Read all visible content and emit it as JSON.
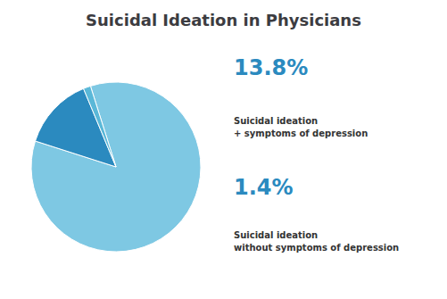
{
  "chart_data": {
    "type": "pie",
    "title": "Suicidal Ideation in Physicians",
    "values": [
      84.8,
      13.8,
      1.4
    ],
    "colors": [
      "#7ec8e3",
      "#2b8abf",
      "#5ab8d8"
    ],
    "annotations": [
      "13.8%",
      "Suicidal ideation\n+ symptoms of depression",
      "1.4%",
      "Suicidal ideation\nwithout symptoms of depression"
    ]
  }
}
